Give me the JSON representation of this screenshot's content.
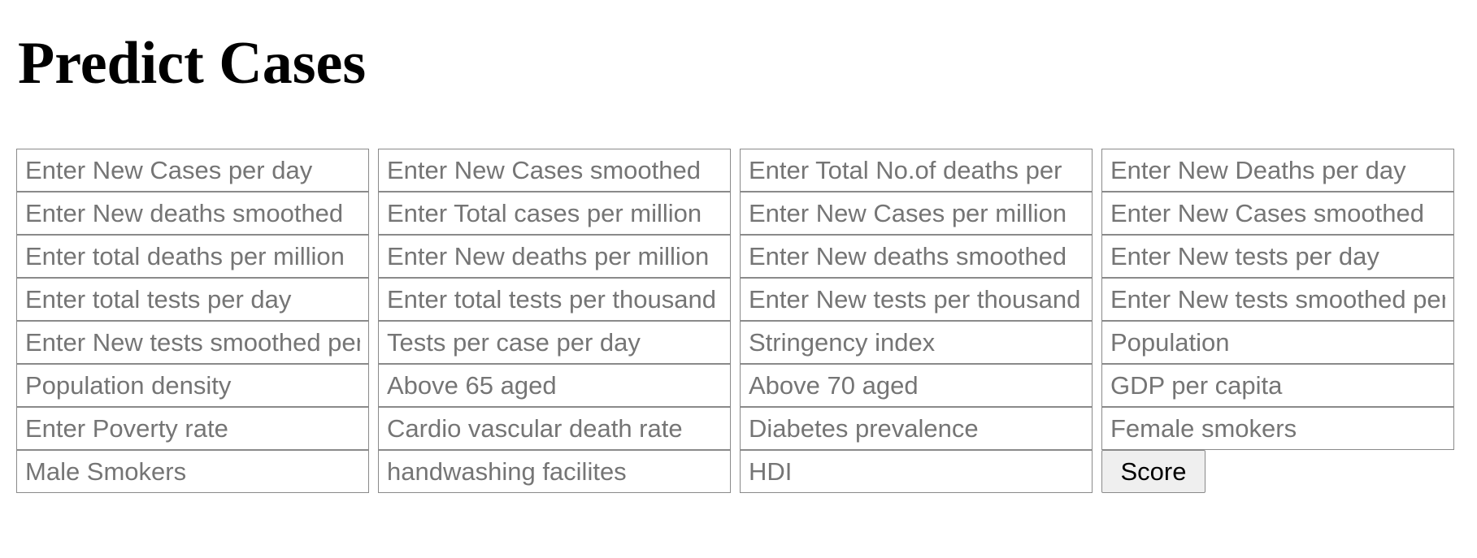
{
  "page": {
    "title": "Predict Cases"
  },
  "form": {
    "fields": [
      {
        "name": "new-cases-per-day-input",
        "placeholder": "Enter New Cases per day"
      },
      {
        "name": "new-cases-smoothed-input",
        "placeholder": "Enter New Cases smoothed"
      },
      {
        "name": "total-deaths-input",
        "placeholder": "Enter Total No.of deaths per"
      },
      {
        "name": "new-deaths-per-day-input",
        "placeholder": "Enter New Deaths per day"
      },
      {
        "name": "new-deaths-smoothed-input",
        "placeholder": "Enter New deaths smoothed"
      },
      {
        "name": "total-cases-per-million-input",
        "placeholder": "Enter Total cases per million"
      },
      {
        "name": "new-cases-per-million-input",
        "placeholder": "Enter New Cases per million"
      },
      {
        "name": "new-cases-smoothed-per-million-input",
        "placeholder": "Enter New Cases smoothed"
      },
      {
        "name": "total-deaths-per-million-input",
        "placeholder": "Enter total deaths per million"
      },
      {
        "name": "new-deaths-per-million-input",
        "placeholder": "Enter New deaths per million"
      },
      {
        "name": "new-deaths-smoothed-per-million-input",
        "placeholder": "Enter New deaths smoothed"
      },
      {
        "name": "new-tests-per-day-input",
        "placeholder": "Enter New tests per day"
      },
      {
        "name": "total-tests-per-day-input",
        "placeholder": "Enter total tests per day"
      },
      {
        "name": "total-tests-per-thousand-input",
        "placeholder": "Enter total tests per thousand"
      },
      {
        "name": "new-tests-per-thousand-input",
        "placeholder": "Enter New tests per thousand"
      },
      {
        "name": "new-tests-smoothed-per-day-input",
        "placeholder": "Enter New tests smoothed per"
      },
      {
        "name": "new-tests-smoothed-per-thousand-input",
        "placeholder": "Enter New tests smoothed per"
      },
      {
        "name": "tests-per-case-input",
        "placeholder": "Tests per case per day"
      },
      {
        "name": "stringency-index-input",
        "placeholder": "Stringency index"
      },
      {
        "name": "population-input",
        "placeholder": "Population"
      },
      {
        "name": "population-density-input",
        "placeholder": "Population density"
      },
      {
        "name": "aged-65-older-input",
        "placeholder": "Above 65 aged"
      },
      {
        "name": "aged-70-older-input",
        "placeholder": "Above 70 aged"
      },
      {
        "name": "gdp-per-capita-input",
        "placeholder": "GDP per capita"
      },
      {
        "name": "poverty-rate-input",
        "placeholder": "Enter Poverty rate"
      },
      {
        "name": "cardiovascular-death-rate-input",
        "placeholder": "Cardio vascular death rate"
      },
      {
        "name": "diabetes-prevalence-input",
        "placeholder": "Diabetes prevalence"
      },
      {
        "name": "female-smokers-input",
        "placeholder": "Female smokers"
      },
      {
        "name": "male-smokers-input",
        "placeholder": "Male Smokers"
      },
      {
        "name": "handwashing-facilities-input",
        "placeholder": "handwashing facilites"
      },
      {
        "name": "hdi-input",
        "placeholder": "HDI"
      }
    ],
    "submit_label": "Score"
  }
}
